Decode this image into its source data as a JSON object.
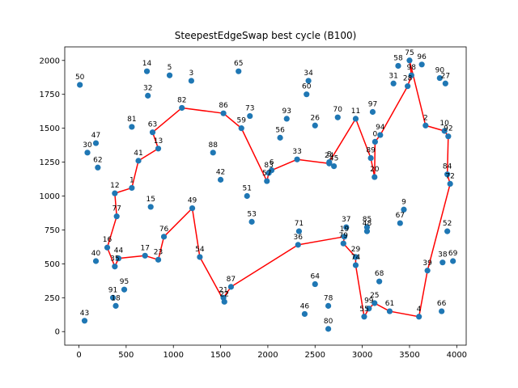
{
  "chart_data": {
    "type": "scatter",
    "title": "SteepestEdgeSwap best cycle (B100)",
    "xlabel": "",
    "ylabel": "",
    "xlim": [
      -150,
      4100
    ],
    "ylim": [
      -100,
      2100
    ],
    "x_ticks": [
      0,
      500,
      1000,
      1500,
      2000,
      2500,
      3000,
      3500,
      4000
    ],
    "y_ticks": [
      0,
      250,
      500,
      750,
      1000,
      1250,
      1500,
      1750,
      2000
    ],
    "grid": false,
    "legend": "none",
    "point_color": "#1f77b4",
    "line_color": "#ff0000",
    "points": [
      {
        "id": "0",
        "x": 3135,
        "y": 1400
      },
      {
        "id": "1",
        "x": 560,
        "y": 1060
      },
      {
        "id": "2",
        "x": 3670,
        "y": 1520
      },
      {
        "id": "3",
        "x": 1190,
        "y": 1850
      },
      {
        "id": "4",
        "x": 3600,
        "y": 110
      },
      {
        "id": "5",
        "x": 960,
        "y": 1890
      },
      {
        "id": "6",
        "x": 2040,
        "y": 1190
      },
      {
        "id": "8",
        "x": 2650,
        "y": 1250
      },
      {
        "id": "9",
        "x": 3440,
        "y": 900
      },
      {
        "id": "10",
        "x": 3870,
        "y": 1480
      },
      {
        "id": "11",
        "x": 2930,
        "y": 1570
      },
      {
        "id": "12",
        "x": 380,
        "y": 1020
      },
      {
        "id": "13",
        "x": 840,
        "y": 1350
      },
      {
        "id": "14",
        "x": 720,
        "y": 1920
      },
      {
        "id": "15",
        "x": 760,
        "y": 920
      },
      {
        "id": "16",
        "x": 300,
        "y": 620
      },
      {
        "id": "17",
        "x": 700,
        "y": 560
      },
      {
        "id": "18",
        "x": 390,
        "y": 190
      },
      {
        "id": "19",
        "x": 2810,
        "y": 700
      },
      {
        "id": "20",
        "x": 3130,
        "y": 1140
      },
      {
        "id": "21",
        "x": 1530,
        "y": 250
      },
      {
        "id": "22",
        "x": 1540,
        "y": 220
      },
      {
        "id": "23",
        "x": 840,
        "y": 530
      },
      {
        "id": "24",
        "x": 2650,
        "y": 1240
      },
      {
        "id": "25",
        "x": 3130,
        "y": 210
      },
      {
        "id": "26",
        "x": 2500,
        "y": 1520
      },
      {
        "id": "27",
        "x": 3880,
        "y": 1830
      },
      {
        "id": "28",
        "x": 3480,
        "y": 1810
      },
      {
        "id": "29",
        "x": 2930,
        "y": 550
      },
      {
        "id": "30",
        "x": 90,
        "y": 1320
      },
      {
        "id": "31",
        "x": 3330,
        "y": 1830
      },
      {
        "id": "33",
        "x": 2310,
        "y": 1270
      },
      {
        "id": "34",
        "x": 2430,
        "y": 1850
      },
      {
        "id": "35",
        "x": 380,
        "y": 480
      },
      {
        "id": "36",
        "x": 2320,
        "y": 640
      },
      {
        "id": "37",
        "x": 2830,
        "y": 770
      },
      {
        "id": "38",
        "x": 3850,
        "y": 510
      },
      {
        "id": "39",
        "x": 3690,
        "y": 450
      },
      {
        "id": "40",
        "x": 180,
        "y": 520
      },
      {
        "id": "41",
        "x": 630,
        "y": 1260
      },
      {
        "id": "42",
        "x": 1500,
        "y": 1120
      },
      {
        "id": "43",
        "x": 60,
        "y": 80
      },
      {
        "id": "44",
        "x": 420,
        "y": 540
      },
      {
        "id": "45",
        "x": 2700,
        "y": 1220
      },
      {
        "id": "46",
        "x": 2390,
        "y": 130
      },
      {
        "id": "47",
        "x": 180,
        "y": 1390
      },
      {
        "id": "48",
        "x": 3050,
        "y": 740
      },
      {
        "id": "49",
        "x": 1200,
        "y": 910
      },
      {
        "id": "50",
        "x": 10,
        "y": 1820
      },
      {
        "id": "51",
        "x": 1780,
        "y": 1000
      },
      {
        "id": "52",
        "x": 3900,
        "y": 740
      },
      {
        "id": "53",
        "x": 1830,
        "y": 810
      },
      {
        "id": "54",
        "x": 1280,
        "y": 550
      },
      {
        "id": "55",
        "x": 3020,
        "y": 110
      },
      {
        "id": "56",
        "x": 2130,
        "y": 1430
      },
      {
        "id": "57",
        "x": 1990,
        "y": 1110
      },
      {
        "id": "58",
        "x": 3380,
        "y": 1960
      },
      {
        "id": "59",
        "x": 1720,
        "y": 1500
      },
      {
        "id": "60",
        "x": 2410,
        "y": 1750
      },
      {
        "id": "61",
        "x": 3290,
        "y": 150
      },
      {
        "id": "62",
        "x": 200,
        "y": 1210
      },
      {
        "id": "63",
        "x": 780,
        "y": 1470
      },
      {
        "id": "64",
        "x": 2500,
        "y": 350
      },
      {
        "id": "65",
        "x": 1690,
        "y": 1920
      },
      {
        "id": "66",
        "x": 3840,
        "y": 150
      },
      {
        "id": "67",
        "x": 3400,
        "y": 800
      },
      {
        "id": "68",
        "x": 3180,
        "y": 370
      },
      {
        "id": "69",
        "x": 3960,
        "y": 520
      },
      {
        "id": "70",
        "x": 2740,
        "y": 1580
      },
      {
        "id": "71",
        "x": 2330,
        "y": 740
      },
      {
        "id": "73",
        "x": 1810,
        "y": 1590
      },
      {
        "id": "74",
        "x": 2930,
        "y": 490
      },
      {
        "id": "75",
        "x": 3500,
        "y": 2000
      },
      {
        "id": "76",
        "x": 900,
        "y": 700
      },
      {
        "id": "77",
        "x": 400,
        "y": 850
      },
      {
        "id": "78",
        "x": 2640,
        "y": 190
      },
      {
        "id": "79",
        "x": 2800,
        "y": 650
      },
      {
        "id": "80",
        "x": 2640,
        "y": 20
      },
      {
        "id": "81",
        "x": 560,
        "y": 1510
      },
      {
        "id": "82",
        "x": 1090,
        "y": 1650
      },
      {
        "id": "84",
        "x": 3900,
        "y": 1160
      },
      {
        "id": "85",
        "x": 3050,
        "y": 770
      },
      {
        "id": "86",
        "x": 1530,
        "y": 1610
      },
      {
        "id": "87",
        "x": 1610,
        "y": 330
      },
      {
        "id": "88",
        "x": 1420,
        "y": 1320
      },
      {
        "id": "89",
        "x": 3090,
        "y": 1280
      },
      {
        "id": "90",
        "x": 3820,
        "y": 1870
      },
      {
        "id": "91",
        "x": 360,
        "y": 250
      },
      {
        "id": "92",
        "x": 3910,
        "y": 1440
      },
      {
        "id": "93",
        "x": 2200,
        "y": 1570
      },
      {
        "id": "94",
        "x": 3190,
        "y": 1450
      },
      {
        "id": "95",
        "x": 480,
        "y": 310
      },
      {
        "id": "96",
        "x": 3630,
        "y": 1970
      },
      {
        "id": "97",
        "x": 3110,
        "y": 1620
      },
      {
        "id": "98",
        "x": 3520,
        "y": 1890
      },
      {
        "id": "99",
        "x": 3070,
        "y": 170
      },
      {
        "id": "32",
        "x": 730,
        "y": 1740
      },
      {
        "id": "72",
        "x": 3930,
        "y": 1090
      },
      {
        "id": "83",
        "x": 2010,
        "y": 1170
      }
    ],
    "cycle": [
      "12",
      "1",
      "41",
      "13",
      "63",
      "82",
      "86",
      "59",
      "57",
      "83",
      "6",
      "33",
      "24",
      "45",
      "8",
      "11",
      "89",
      "20",
      "0",
      "94",
      "28",
      "98",
      "75",
      "2",
      "10",
      "92",
      "84",
      "72",
      "39",
      "4",
      "61",
      "25",
      "99",
      "55",
      "74",
      "29",
      "79",
      "19",
      "36",
      "87",
      "21",
      "22",
      "54",
      "49",
      "76",
      "23",
      "17",
      "44",
      "35",
      "16",
      "77",
      "12"
    ]
  }
}
